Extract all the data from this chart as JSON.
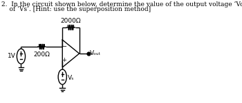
{
  "title_line1": "2.  In the circuit shown below, determine the value of the output voltage ‘Vout’ as a function",
  "title_line2": "    of ‘Vs’. [Hint: use the superposition method]",
  "bg_color": "#ffffff",
  "text_color": "#000000",
  "resistor_200_label": "200Ω",
  "resistor_2000_label": "2000Ω",
  "source_1v_label": "1V",
  "source_vs_label": "Vₛ",
  "vout_label": "Vₒᵤₜ",
  "line_color": "#000000",
  "font_size_title": 6.5,
  "font_size_labels": 6.5
}
